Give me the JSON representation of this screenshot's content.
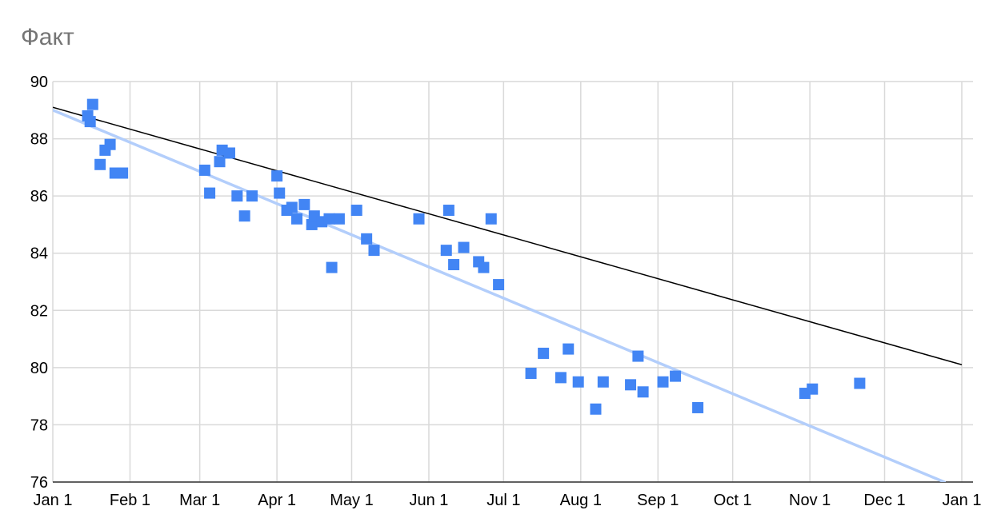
{
  "chart_data": {
    "type": "scatter",
    "title": "Факт",
    "xlabel": "",
    "ylabel": "",
    "x_tick_labels": [
      "Jan 1",
      "Feb 1",
      "Mar 1",
      "Apr 1",
      "May 1",
      "Jun 1",
      "Jul 1",
      "Aug 1",
      "Sep 1",
      "Oct 1",
      "Nov 1",
      "Dec 1",
      "Jan 1"
    ],
    "y_ticks": [
      76,
      78,
      80,
      82,
      84,
      86,
      88,
      90
    ],
    "xlim": [
      "Jan 1",
      "Jan 1 (next year)"
    ],
    "ylim": [
      76,
      90
    ],
    "grid": true,
    "legend": "none",
    "colors": {
      "points": "#4285f4",
      "trendline": "#b3cefb",
      "target_line": "#000000",
      "grid": "#d9d9d9"
    },
    "points": [
      {
        "x": "Jan 15",
        "y": 88.8
      },
      {
        "x": "Jan 16",
        "y": 88.6
      },
      {
        "x": "Jan 17",
        "y": 89.2
      },
      {
        "x": "Jan 20",
        "y": 87.1
      },
      {
        "x": "Jan 22",
        "y": 87.6
      },
      {
        "x": "Jan 24",
        "y": 87.8
      },
      {
        "x": "Jan 26",
        "y": 86.8
      },
      {
        "x": "Jan 29",
        "y": 86.8
      },
      {
        "x": "Mar 3",
        "y": 86.9
      },
      {
        "x": "Mar 5",
        "y": 86.1
      },
      {
        "x": "Mar 9",
        "y": 87.2
      },
      {
        "x": "Mar 10",
        "y": 87.6
      },
      {
        "x": "Mar 13",
        "y": 87.5
      },
      {
        "x": "Mar 16",
        "y": 86.0
      },
      {
        "x": "Mar 19",
        "y": 85.3
      },
      {
        "x": "Mar 22",
        "y": 86.0
      },
      {
        "x": "Apr 1",
        "y": 86.7
      },
      {
        "x": "Apr 2",
        "y": 86.1
      },
      {
        "x": "Apr 5",
        "y": 85.5
      },
      {
        "x": "Apr 7",
        "y": 85.6
      },
      {
        "x": "Apr 9",
        "y": 85.2
      },
      {
        "x": "Apr 12",
        "y": 85.7
      },
      {
        "x": "Apr 15",
        "y": 85.0
      },
      {
        "x": "Apr 16",
        "y": 85.3
      },
      {
        "x": "Apr 19",
        "y": 85.1
      },
      {
        "x": "Apr 22",
        "y": 85.2
      },
      {
        "x": "Apr 23",
        "y": 83.5
      },
      {
        "x": "Apr 26",
        "y": 85.2
      },
      {
        "x": "May 3",
        "y": 85.5
      },
      {
        "x": "May 7",
        "y": 84.5
      },
      {
        "x": "May 10",
        "y": 84.1
      },
      {
        "x": "May 28",
        "y": 85.2
      },
      {
        "x": "Jun 8",
        "y": 84.1
      },
      {
        "x": "Jun 9",
        "y": 85.5
      },
      {
        "x": "Jun 11",
        "y": 83.6
      },
      {
        "x": "Jun 15",
        "y": 84.2
      },
      {
        "x": "Jun 21",
        "y": 83.7
      },
      {
        "x": "Jun 23",
        "y": 83.5
      },
      {
        "x": "Jun 26",
        "y": 85.2
      },
      {
        "x": "Jun 29",
        "y": 82.9
      },
      {
        "x": "Jul 12",
        "y": 79.8
      },
      {
        "x": "Jul 17",
        "y": 80.5
      },
      {
        "x": "Jul 24",
        "y": 79.65
      },
      {
        "x": "Jul 27",
        "y": 80.65
      },
      {
        "x": "Jul 31",
        "y": 79.5
      },
      {
        "x": "Aug 7",
        "y": 78.55
      },
      {
        "x": "Aug 10",
        "y": 79.5
      },
      {
        "x": "Aug 21",
        "y": 79.4
      },
      {
        "x": "Aug 24",
        "y": 80.4
      },
      {
        "x": "Aug 26",
        "y": 79.15
      },
      {
        "x": "Sep 3",
        "y": 79.5
      },
      {
        "x": "Sep 8",
        "y": 79.7
      },
      {
        "x": "Sep 17",
        "y": 78.6
      },
      {
        "x": "Oct 30",
        "y": 79.1
      },
      {
        "x": "Nov 2",
        "y": 79.25
      },
      {
        "x": "Nov 21",
        "y": 79.45
      }
    ],
    "trendline": {
      "from": {
        "x": "Jan 1",
        "y": 89.0
      },
      "to": {
        "x": "Dec 25",
        "y": 76.0
      }
    },
    "target_line": {
      "from": {
        "x": "Jan 1",
        "y": 89.1
      },
      "to": {
        "x": "Jan 1 (next year)",
        "y": 80.1
      }
    }
  }
}
